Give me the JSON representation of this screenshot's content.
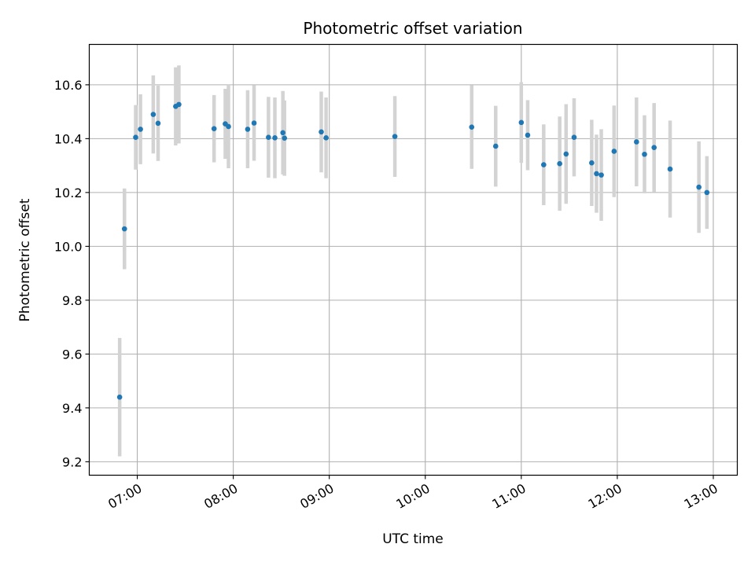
{
  "chart_data": {
    "type": "scatter",
    "title": "Photometric offset variation",
    "xlabel": "UTC time",
    "ylabel": "Photometric offset",
    "x_ticks": [
      "07:00",
      "08:00",
      "09:00",
      "10:00",
      "11:00",
      "12:00",
      "13:00"
    ],
    "y_ticks": [
      "9.2",
      "9.4",
      "9.6",
      "9.8",
      "10.0",
      "10.2",
      "10.4",
      "10.6"
    ],
    "xlim": [
      "06:30",
      "13:15"
    ],
    "ylim": [
      9.15,
      10.75
    ],
    "grid": true,
    "colors": {
      "marker": "#1f77b4",
      "errorbar": "#d3d3d3",
      "grid": "#b0b0b0"
    },
    "series": [
      {
        "points": [
          {
            "x": "06:49",
            "y": 9.44,
            "err": 0.22
          },
          {
            "x": "06:52",
            "y": 10.065,
            "err": 0.15
          },
          {
            "x": "06:59",
            "y": 10.405,
            "err": 0.12
          },
          {
            "x": "07:02",
            "y": 10.435,
            "err": 0.13
          },
          {
            "x": "07:10",
            "y": 10.49,
            "err": 0.145
          },
          {
            "x": "07:13",
            "y": 10.457,
            "err": 0.14
          },
          {
            "x": "07:24",
            "y": 10.52,
            "err": 0.145
          },
          {
            "x": "07:26",
            "y": 10.527,
            "err": 0.145
          },
          {
            "x": "07:48",
            "y": 10.437,
            "err": 0.125
          },
          {
            "x": "07:55",
            "y": 10.455,
            "err": 0.13
          },
          {
            "x": "07:57",
            "y": 10.445,
            "err": 0.155
          },
          {
            "x": "08:09",
            "y": 10.435,
            "err": 0.145
          },
          {
            "x": "08:13",
            "y": 10.458,
            "err": 0.14
          },
          {
            "x": "08:22",
            "y": 10.405,
            "err": 0.15
          },
          {
            "x": "08:26",
            "y": 10.403,
            "err": 0.15
          },
          {
            "x": "08:31",
            "y": 10.422,
            "err": 0.155
          },
          {
            "x": "08:32",
            "y": 10.402,
            "err": 0.14
          },
          {
            "x": "08:55",
            "y": 10.425,
            "err": 0.15
          },
          {
            "x": "08:58",
            "y": 10.403,
            "err": 0.15
          },
          {
            "x": "09:41",
            "y": 10.408,
            "err": 0.15
          },
          {
            "x": "10:29",
            "y": 10.443,
            "err": 0.155
          },
          {
            "x": "10:44",
            "y": 10.372,
            "err": 0.15
          },
          {
            "x": "11:00",
            "y": 10.46,
            "err": 0.15
          },
          {
            "x": "11:04",
            "y": 10.413,
            "err": 0.13
          },
          {
            "x": "11:14",
            "y": 10.303,
            "err": 0.15
          },
          {
            "x": "11:24",
            "y": 10.307,
            "err": 0.175
          },
          {
            "x": "11:28",
            "y": 10.343,
            "err": 0.185
          },
          {
            "x": "11:33",
            "y": 10.405,
            "err": 0.145
          },
          {
            "x": "11:44",
            "y": 10.31,
            "err": 0.16
          },
          {
            "x": "11:47",
            "y": 10.27,
            "err": 0.145
          },
          {
            "x": "11:50",
            "y": 10.265,
            "err": 0.17
          },
          {
            "x": "11:58",
            "y": 10.353,
            "err": 0.17
          },
          {
            "x": "12:12",
            "y": 10.388,
            "err": 0.165
          },
          {
            "x": "12:17",
            "y": 10.342,
            "err": 0.145
          },
          {
            "x": "12:23",
            "y": 10.367,
            "err": 0.165
          },
          {
            "x": "12:33",
            "y": 10.287,
            "err": 0.18
          },
          {
            "x": "12:51",
            "y": 10.22,
            "err": 0.17
          },
          {
            "x": "12:56",
            "y": 10.2,
            "err": 0.135
          }
        ]
      }
    ]
  }
}
